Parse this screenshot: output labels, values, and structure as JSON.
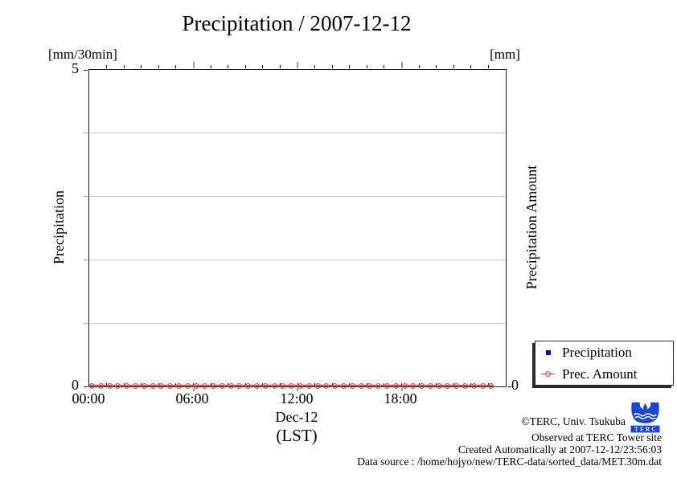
{
  "chart_data": {
    "type": "scatter",
    "title": "Precipitation / 2007-12-12",
    "x_axis": {
      "label": "Dec-12",
      "sublabel": "(LST)",
      "start_hour": 0,
      "end_hour": 24,
      "major_tick_labels": [
        "00:00",
        "06:00",
        "12:00",
        "18:00"
      ],
      "major_tick_hours": [
        0,
        6,
        12,
        18
      ],
      "minor_tick_interval_hours": 1
    },
    "y_left": {
      "label": "Precipitation",
      "unit": "[mm/30min]",
      "min": 0,
      "max": 5,
      "tick_labels_shown": [
        "5",
        "0"
      ],
      "gridlines_at": [
        1,
        2,
        3,
        4
      ]
    },
    "y_right": {
      "label": "Precipitation Amount",
      "unit": "[mm]",
      "tick_labels_shown": [
        "0"
      ]
    },
    "series": [
      {
        "name": "Precipitation",
        "marker": "filled-square",
        "color": "#0000cd",
        "values_constant": 0
      },
      {
        "name": "Prec. Amount",
        "marker": "open-circle",
        "color": "#e04b4b",
        "sample_interval_minutes": 30,
        "n_points": 47,
        "values_constant": 0
      }
    ],
    "grid_color": "#c9c9c9",
    "axis_color": "#1b1b1b",
    "minor_tick_color": "#111111",
    "major_tick_color": "#9a9a9a"
  },
  "legend": {
    "items": [
      {
        "label": "Precipitation",
        "marker": "filled-square",
        "color": "#0000cd"
      },
      {
        "label": "Prec. Amount",
        "marker": "open-circle",
        "color": "#e04b4b"
      }
    ]
  },
  "credits": {
    "copyright": "©TERC, Univ. Tsukuba",
    "observed": "Observed at TERC Tower site",
    "created": "Created Automatically at 2007-12-12/23:56:03",
    "source": "Data source : /home/hojyo/new/TERC-data/sorted_data/MET.30m.dat",
    "logo_text": "TERC",
    "logo_color": "#1b46cf"
  }
}
